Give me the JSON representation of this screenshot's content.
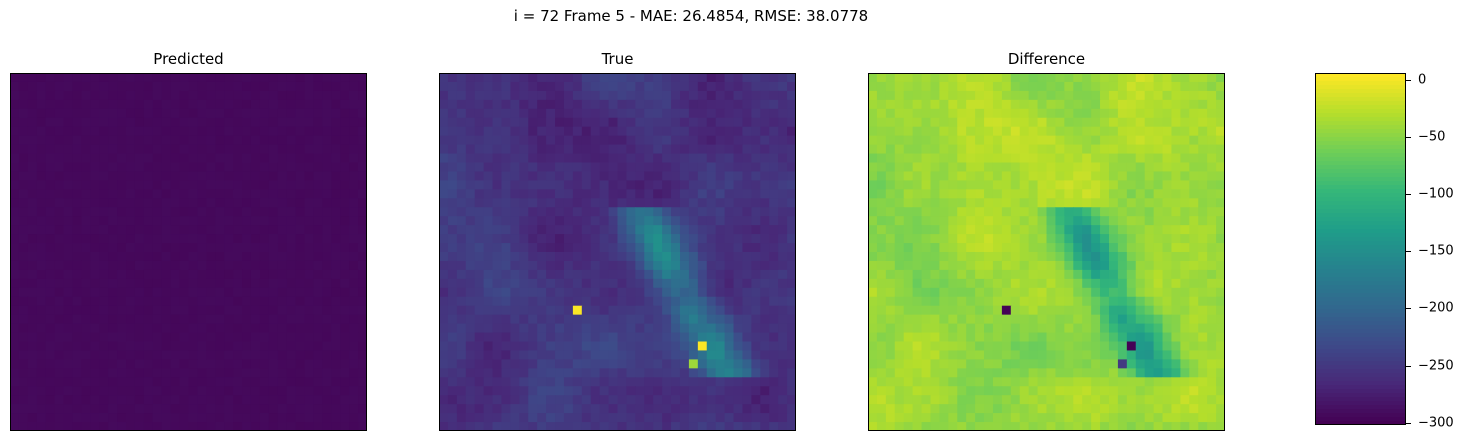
{
  "chart_data": {
    "type": "heatmap",
    "title": "i = 72 Frame 5 - MAE: 26.4854, RMSE: 38.0778",
    "panels": [
      {
        "title": "Predicted"
      },
      {
        "title": "True"
      },
      {
        "title": "Difference"
      }
    ],
    "colormap": "viridis",
    "grid_size": [
      40,
      40
    ],
    "colorbar": {
      "range": [
        -302,
        6
      ],
      "ticks": [
        0,
        -50,
        -100,
        -150,
        -200,
        -250,
        -300
      ],
      "tick_labels": [
        "0",
        "−50",
        "−100",
        "−150",
        "−200",
        "−250",
        "−300"
      ]
    },
    "hotspots": [
      {
        "panel": "True",
        "row": 26,
        "col": 15,
        "value": 5
      },
      {
        "panel": "True",
        "row": 30,
        "col": 29,
        "value": 5
      },
      {
        "panel": "True",
        "row": 32,
        "col": 28,
        "value": -40
      },
      {
        "panel": "Difference",
        "row": 26,
        "col": 15,
        "value": -300
      },
      {
        "panel": "Difference",
        "row": 30,
        "col": 29,
        "value": -300
      },
      {
        "panel": "Difference",
        "row": 32,
        "col": 28,
        "value": -250
      }
    ]
  }
}
